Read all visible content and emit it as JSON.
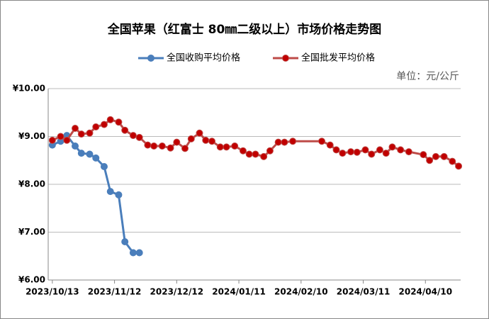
{
  "chart_data": {
    "type": "line",
    "title": "全国苹果（红富士 80㎜二级以上）市场价格走势图",
    "unit_note": "单位：元/公斤",
    "x": [
      "2023/10/13",
      "2023/10/17",
      "2023/10/20",
      "2023/10/24",
      "2023/10/27",
      "2023/10/31",
      "2023/11/03",
      "2023/11/07",
      "2023/11/10",
      "2023/11/14",
      "2023/11/17",
      "2023/11/21",
      "2023/11/24",
      "2023/11/28",
      "2023/12/01",
      "2023/12/05",
      "2023/12/09",
      "2023/12/12",
      "2023/12/16",
      "2023/12/19",
      "2023/12/23",
      "2023/12/26",
      "2023/12/29",
      "2024/01/02",
      "2024/01/05",
      "2024/01/09",
      "2024/01/13",
      "2024/01/16",
      "2024/01/19",
      "2024/01/23",
      "2024/01/26",
      "2024/01/30",
      "2024/02/02",
      "2024/02/06",
      "2024/02/20",
      "2024/02/24",
      "2024/02/27",
      "2024/03/01",
      "2024/03/05",
      "2024/03/08",
      "2024/03/12",
      "2024/03/15",
      "2024/03/19",
      "2024/03/22",
      "2024/03/25",
      "2024/03/29",
      "2024/04/02",
      "2024/04/09",
      "2024/04/12",
      "2024/04/15",
      "2024/04/19",
      "2024/04/23",
      "2024/04/26"
    ],
    "series": [
      {
        "name": "全国收购平均价格",
        "color": "#4a7ebb",
        "values": [
          8.82,
          8.9,
          9.02,
          8.8,
          8.65,
          8.63,
          8.55,
          8.37,
          7.85,
          7.78,
          6.8,
          6.57,
          6.57,
          null,
          null,
          null,
          null,
          null,
          null,
          null,
          null,
          null,
          null,
          null,
          null,
          null,
          null,
          null,
          null,
          null,
          null,
          null,
          null,
          null,
          null,
          null,
          null,
          null,
          null,
          null,
          null,
          null,
          null,
          null,
          null,
          null,
          null,
          null,
          null,
          null,
          null,
          null,
          null
        ]
      },
      {
        "name": "全国批发平均价格",
        "color": "#be4b48",
        "values": [
          8.92,
          9.0,
          8.92,
          9.17,
          9.05,
          9.07,
          9.2,
          9.25,
          9.35,
          9.3,
          9.13,
          9.02,
          8.98,
          8.82,
          8.8,
          8.8,
          8.76,
          8.88,
          8.75,
          8.95,
          9.07,
          8.92,
          8.9,
          8.78,
          8.78,
          8.8,
          8.7,
          8.63,
          8.63,
          8.58,
          8.7,
          8.88,
          8.88,
          8.9,
          8.9,
          8.82,
          8.72,
          8.65,
          8.68,
          8.67,
          8.72,
          8.63,
          8.72,
          8.65,
          8.78,
          8.72,
          8.68,
          8.62,
          8.5,
          8.58,
          8.58,
          8.48,
          8.38
        ]
      }
    ],
    "xlim": [
      "2023/10/11",
      "2024/04/27"
    ],
    "xticks": [
      "2023/10/13",
      "2023/11/12",
      "2023/12/12",
      "2024/01/11",
      "2024/02/10",
      "2024/03/11",
      "2024/04/10"
    ],
    "ylim": [
      6,
      10
    ],
    "yticks": [
      {
        "value": 6,
        "label": "¥6.00"
      },
      {
        "value": 7,
        "label": "¥7.00"
      },
      {
        "value": 8,
        "label": "¥8.00"
      },
      {
        "value": 9,
        "label": "¥9.00"
      },
      {
        "value": 10,
        "label": "¥10.00"
      }
    ],
    "grid": true,
    "legend": "top"
  }
}
